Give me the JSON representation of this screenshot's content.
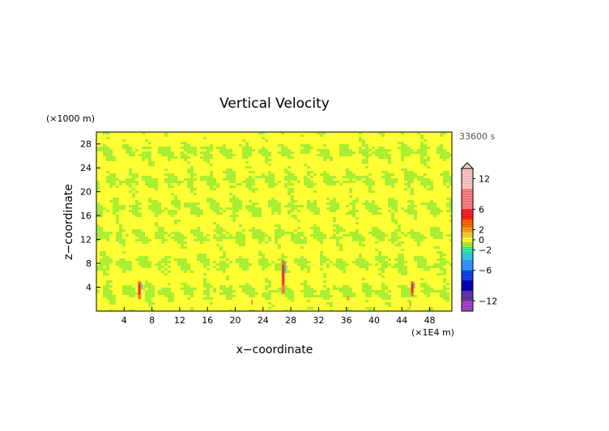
{
  "chart_data": {
    "type": "heatmap",
    "title": "Vertical Velocity",
    "xlabel": "x−coordinate",
    "ylabel": "z−coordinate",
    "x_unit": "(×1E4 m)",
    "y_unit": "(×1000 m)",
    "time_label": "33600 s",
    "xlim": [
      0,
      51.2
    ],
    "ylim": [
      0,
      30
    ],
    "x_ticks": [
      4,
      8,
      12,
      16,
      20,
      24,
      28,
      32,
      36,
      40,
      44,
      48
    ],
    "y_ticks": [
      4,
      8,
      12,
      16,
      20,
      24,
      28
    ],
    "colorbar": {
      "range": [
        -14,
        14
      ],
      "tick_values": [
        12,
        6,
        2,
        0,
        -2,
        -6,
        -12
      ],
      "tick_labels": [
        "12",
        "6",
        "2",
        "0",
        "−2",
        "−6",
        "−12"
      ]
    },
    "features": [
      {
        "x": 6.2,
        "z_range": [
          2,
          5
        ]
      },
      {
        "x": 26.9,
        "z_range": [
          3,
          8.5
        ]
      },
      {
        "x": 45.5,
        "z_range": [
          2.5,
          5
        ]
      }
    ]
  },
  "colors": {
    "background_yellow": "#ffff33",
    "pattern_green": "#aaee33",
    "axis": "#000000"
  }
}
